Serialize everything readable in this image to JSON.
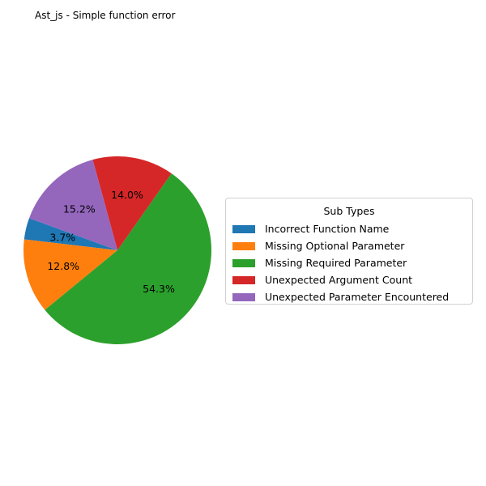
{
  "chart_data": {
    "type": "pie",
    "title": "Ast_js - Simple function error",
    "legend_title": "Sub Types",
    "legend_placement": "right",
    "categories": [
      " Incorrect Function Name",
      " Missing Optional Parameter",
      " Missing Required Parameter",
      " Unexpected Argument Count",
      " Unexpected Parameter Encountered"
    ],
    "values": [
      3.7,
      12.8,
      54.3,
      14.0,
      15.2
    ],
    "labels": [
      "3.7%",
      "12.8%",
      "54.3%",
      "14.0%",
      "15.2%"
    ],
    "colors": [
      "#1f77b4",
      "#ff7f0e",
      "#2ca02c",
      "#d62728",
      "#9467bd"
    ]
  }
}
